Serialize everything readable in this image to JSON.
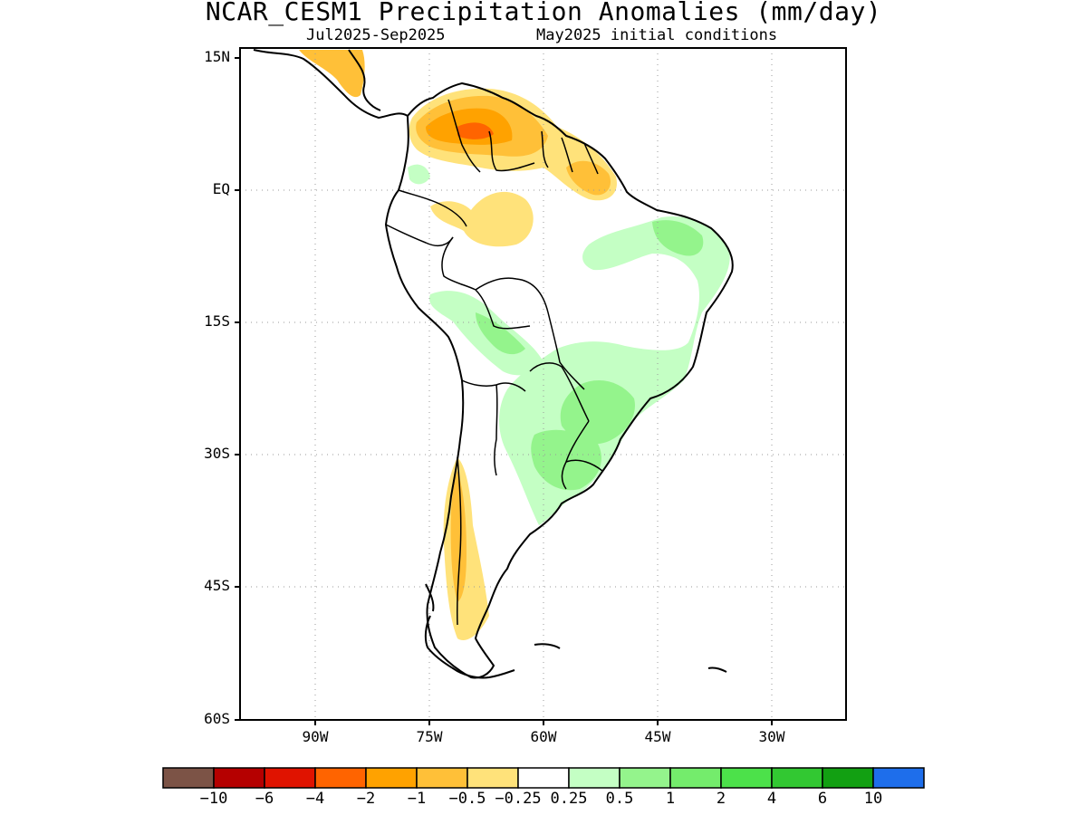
{
  "title": "NCAR_CESM1 Precipitation Anomalies (mm/day)",
  "subtitle_left": "Jul2025-Sep2025",
  "subtitle_right": "May2025 initial conditions",
  "lat_labels": [
    "15N",
    "EQ",
    "15S",
    "30S",
    "45S",
    "60S"
  ],
  "lon_labels": [
    "90W",
    "75W",
    "60W",
    "45W",
    "30W"
  ],
  "colorbar": {
    "colors": [
      "#7c5346",
      "#b50000",
      "#e01300",
      "#ff6400",
      "#ffa200",
      "#ffc038",
      "#ffe27a",
      "#ffffff",
      "#c4ffc4",
      "#94f48c",
      "#74ec6c",
      "#4ce14a",
      "#32c832",
      "#12a012",
      "#1e6eeb"
    ],
    "labels": [
      "-10",
      "-6",
      "-4",
      "-2",
      "-1",
      "-0.5",
      "-0.25",
      "0.25",
      "0.5",
      "1",
      "2",
      "4",
      "6",
      "10"
    ]
  },
  "map_data": {
    "region": "South America",
    "lon_range": [
      "95W",
      "15W"
    ],
    "lat_range": [
      "16N",
      "60S"
    ],
    "gridlines": true,
    "variable": "Precipitation Anomalies (mm/day)"
  }
}
